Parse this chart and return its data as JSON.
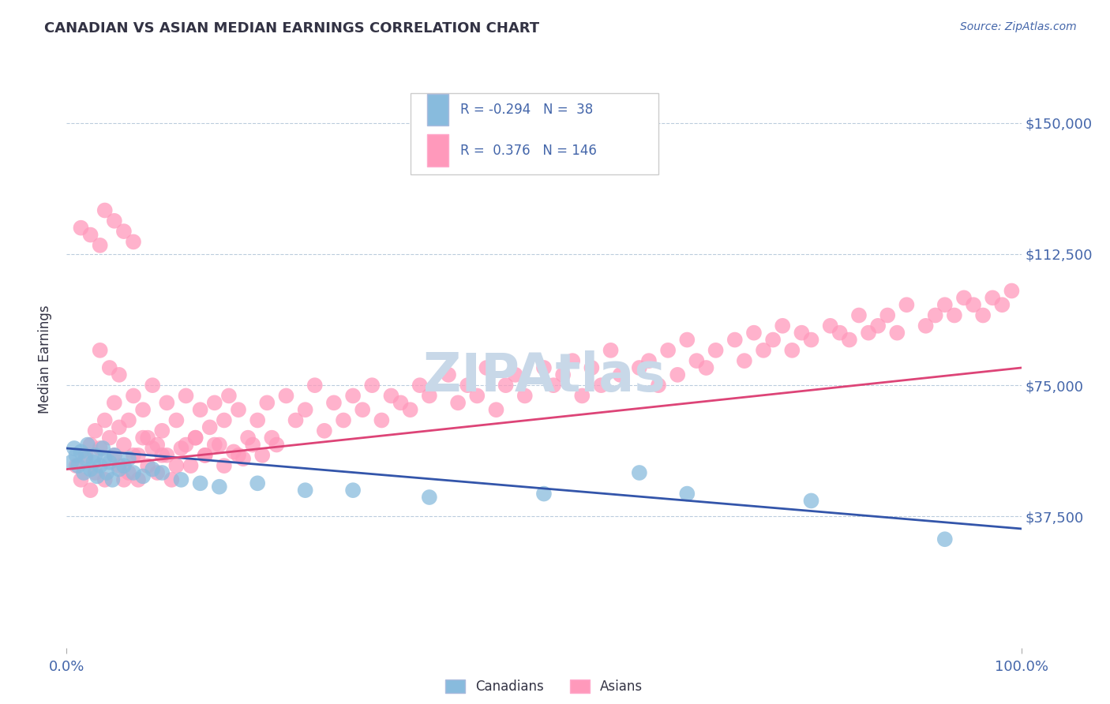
{
  "title": "CANADIAN VS ASIAN MEDIAN EARNINGS CORRELATION CHART",
  "source": "Source: ZipAtlas.com",
  "ylabel": "Median Earnings",
  "xlim": [
    0,
    1.0
  ],
  "ylim": [
    0,
    165000
  ],
  "yticks": [
    0,
    37500,
    75000,
    112500,
    150000
  ],
  "ytick_labels": [
    "",
    "$37,500",
    "$75,000",
    "$112,500",
    "$150,000"
  ],
  "canadians_R": -0.294,
  "canadians_N": 38,
  "asians_R": 0.376,
  "asians_N": 146,
  "blue_scatter_color": "#88BBDD",
  "pink_scatter_color": "#FF99BB",
  "blue_line_color": "#3355AA",
  "pink_line_color": "#DD4477",
  "title_color": "#333344",
  "axis_label_color": "#4466AA",
  "grid_color": "#BBCCDD",
  "background_color": "#FFFFFF",
  "watermark_color": "#C8D8E8",
  "legend_border_color": "#CCCCCC",
  "canadians_x": [
    0.005,
    0.008,
    0.01,
    0.012,
    0.015,
    0.018,
    0.02,
    0.022,
    0.025,
    0.028,
    0.03,
    0.032,
    0.035,
    0.038,
    0.04,
    0.042,
    0.045,
    0.048,
    0.05,
    0.055,
    0.06,
    0.065,
    0.07,
    0.08,
    0.09,
    0.1,
    0.12,
    0.14,
    0.16,
    0.2,
    0.25,
    0.3,
    0.38,
    0.5,
    0.6,
    0.65,
    0.78,
    0.92
  ],
  "canadians_y": [
    53000,
    57000,
    55000,
    52000,
    56000,
    50000,
    54000,
    58000,
    51000,
    53000,
    55000,
    49000,
    52000,
    57000,
    54000,
    50000,
    53000,
    48000,
    55000,
    51000,
    52000,
    54000,
    50000,
    49000,
    51000,
    50000,
    48000,
    47000,
    46000,
    47000,
    45000,
    45000,
    43000,
    44000,
    50000,
    44000,
    42000,
    31000
  ],
  "asians_x": [
    0.01,
    0.015,
    0.02,
    0.025,
    0.025,
    0.03,
    0.03,
    0.035,
    0.04,
    0.04,
    0.045,
    0.05,
    0.05,
    0.055,
    0.055,
    0.06,
    0.06,
    0.065,
    0.07,
    0.07,
    0.075,
    0.08,
    0.08,
    0.085,
    0.09,
    0.09,
    0.095,
    0.1,
    0.1,
    0.105,
    0.11,
    0.115,
    0.12,
    0.125,
    0.13,
    0.135,
    0.14,
    0.145,
    0.15,
    0.155,
    0.16,
    0.165,
    0.17,
    0.18,
    0.18,
    0.19,
    0.2,
    0.21,
    0.22,
    0.23,
    0.24,
    0.25,
    0.26,
    0.27,
    0.28,
    0.29,
    0.3,
    0.31,
    0.32,
    0.33,
    0.34,
    0.35,
    0.36,
    0.37,
    0.38,
    0.4,
    0.41,
    0.42,
    0.43,
    0.44,
    0.45,
    0.46,
    0.47,
    0.48,
    0.5,
    0.51,
    0.52,
    0.53,
    0.54,
    0.55,
    0.56,
    0.57,
    0.58,
    0.6,
    0.61,
    0.62,
    0.63,
    0.64,
    0.65,
    0.66,
    0.67,
    0.68,
    0.7,
    0.71,
    0.72,
    0.73,
    0.74,
    0.75,
    0.76,
    0.77,
    0.78,
    0.8,
    0.81,
    0.82,
    0.83,
    0.84,
    0.85,
    0.86,
    0.87,
    0.88,
    0.9,
    0.91,
    0.92,
    0.93,
    0.94,
    0.95,
    0.96,
    0.97,
    0.98,
    0.99,
    0.015,
    0.025,
    0.035,
    0.04,
    0.05,
    0.06,
    0.07,
    0.035,
    0.045,
    0.055,
    0.065,
    0.075,
    0.085,
    0.095,
    0.105,
    0.115,
    0.125,
    0.135,
    0.145,
    0.155,
    0.165,
    0.175,
    0.185,
    0.195,
    0.205,
    0.215
  ],
  "asians_y": [
    52000,
    48000,
    55000,
    58000,
    45000,
    62000,
    50000,
    57000,
    65000,
    48000,
    60000,
    55000,
    70000,
    52000,
    63000,
    58000,
    48000,
    65000,
    55000,
    72000,
    48000,
    60000,
    68000,
    52000,
    57000,
    75000,
    50000,
    62000,
    55000,
    70000,
    48000,
    65000,
    57000,
    72000,
    52000,
    60000,
    68000,
    55000,
    63000,
    70000,
    58000,
    65000,
    72000,
    55000,
    68000,
    60000,
    65000,
    70000,
    58000,
    72000,
    65000,
    68000,
    75000,
    62000,
    70000,
    65000,
    72000,
    68000,
    75000,
    65000,
    72000,
    70000,
    68000,
    75000,
    72000,
    78000,
    70000,
    75000,
    72000,
    80000,
    68000,
    75000,
    78000,
    72000,
    80000,
    75000,
    78000,
    82000,
    72000,
    80000,
    75000,
    85000,
    78000,
    80000,
    82000,
    75000,
    85000,
    78000,
    88000,
    82000,
    80000,
    85000,
    88000,
    82000,
    90000,
    85000,
    88000,
    92000,
    85000,
    90000,
    88000,
    92000,
    90000,
    88000,
    95000,
    90000,
    92000,
    95000,
    90000,
    98000,
    92000,
    95000,
    98000,
    95000,
    100000,
    98000,
    95000,
    100000,
    98000,
    102000,
    120000,
    118000,
    115000,
    125000,
    122000,
    119000,
    116000,
    85000,
    80000,
    78000,
    50000,
    55000,
    60000,
    58000,
    55000,
    52000,
    58000,
    60000,
    55000,
    58000,
    52000,
    56000,
    54000,
    58000,
    55000,
    60000
  ]
}
